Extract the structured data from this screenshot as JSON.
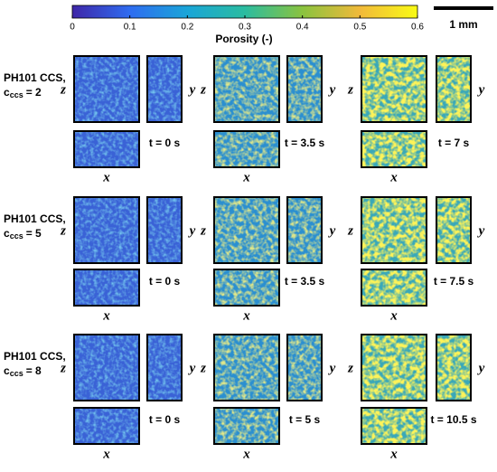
{
  "colorbar": {
    "label": "Porosity (-)",
    "lim": [
      0,
      0.6
    ],
    "ticks": [
      0,
      0.1,
      0.2,
      0.3,
      0.4,
      0.5,
      0.6
    ],
    "colors": [
      "#3e26a8",
      "#2f6cf0",
      "#1aa5d8",
      "#2bbca0",
      "#8ac33f",
      "#f1b93a",
      "#f9fb15"
    ]
  },
  "scale_bar": "1 mm",
  "axes": {
    "depth": "z",
    "height": "y",
    "width": "x"
  },
  "rows": [
    {
      "label": "PH101 CCS,",
      "c_symbol": "c",
      "c_subscript": "ccs",
      "c_value": "= 2",
      "times": [
        "t = 0 s",
        "t = 3.5 s",
        "t = 7 s"
      ]
    },
    {
      "label": "PH101 CCS,",
      "c_symbol": "c",
      "c_subscript": "ccs",
      "c_value": "= 5",
      "times": [
        "t = 0 s",
        "t = 3.5 s",
        "t = 7.5 s"
      ]
    },
    {
      "label": "PH101 CCS,",
      "c_symbol": "c",
      "c_subscript": "ccs",
      "c_value": "= 8",
      "times": [
        "t = 0 s",
        "t = 5 s",
        "t = 10.5 s"
      ]
    }
  ]
}
